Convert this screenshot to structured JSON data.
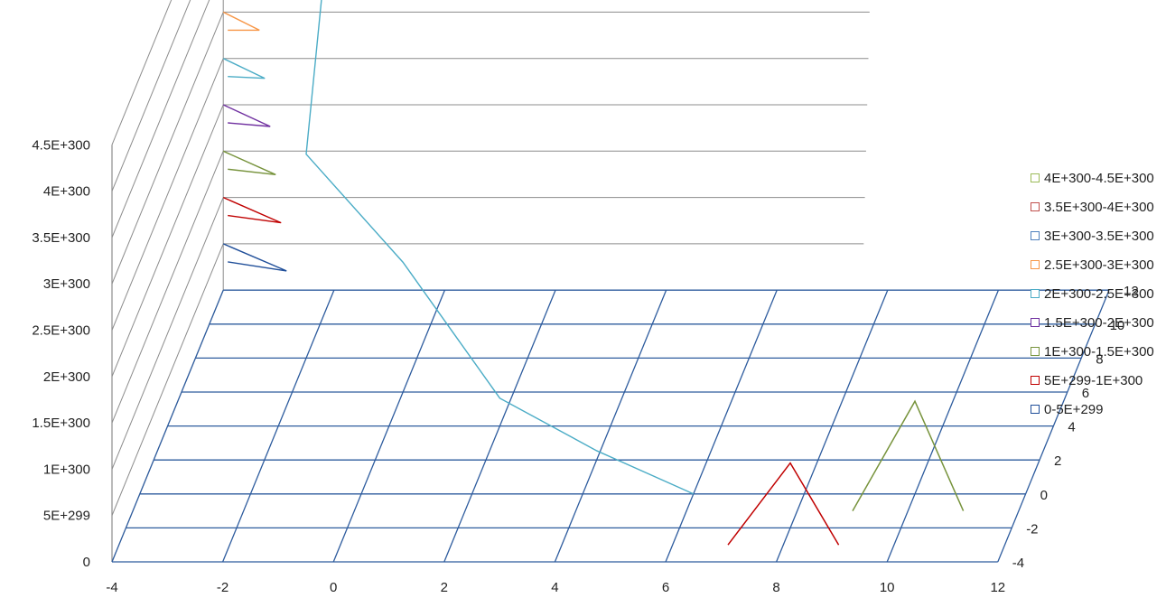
{
  "chart_data": {
    "type": "surface-3d",
    "title": "",
    "x_ticks": [
      "-4",
      "-2",
      "0",
      "2",
      "4",
      "6",
      "8",
      "10",
      "12"
    ],
    "y_ticks": [
      "-4",
      "-2",
      "0",
      "2",
      "4",
      "6",
      "8",
      "10",
      "12"
    ],
    "z_ticks": [
      "0",
      "5E+299",
      "1E+300",
      "1.5E+300",
      "2E+300",
      "2.5E+300",
      "3E+300",
      "3.5E+300",
      "4E+300",
      "4.5E+300"
    ],
    "zlim": [
      0,
      4.5e+300
    ],
    "grid": true,
    "legend_position": "right",
    "legend": [
      {
        "label": "4E+300-4.5E+300",
        "color": "#9BBB59"
      },
      {
        "label": "3.5E+300-4E+300",
        "color": "#C0504D"
      },
      {
        "label": "3E+300-3.5E+300",
        "color": "#4F81BD"
      },
      {
        "label": "2.5E+300-3E+300",
        "color": "#F79646"
      },
      {
        "label": "2E+300-2.5E+300",
        "color": "#4BACC6"
      },
      {
        "label": "1.5E+300-2E+300",
        "color": "#7030A0"
      },
      {
        "label": "1E+300-1.5E+300",
        "color": "#77933C"
      },
      {
        "label": "5E+299-1E+300",
        "color": "#C00000"
      },
      {
        "label": "0-5E+299",
        "color": "#1F4E99"
      }
    ],
    "surface_peaks": [
      {
        "x": -2,
        "y": 12,
        "z": 4.5e+300
      },
      {
        "x": 8,
        "y": -2,
        "z": 7e+299
      },
      {
        "x": 10,
        "y": 0,
        "z": 1e+300
      }
    ]
  }
}
